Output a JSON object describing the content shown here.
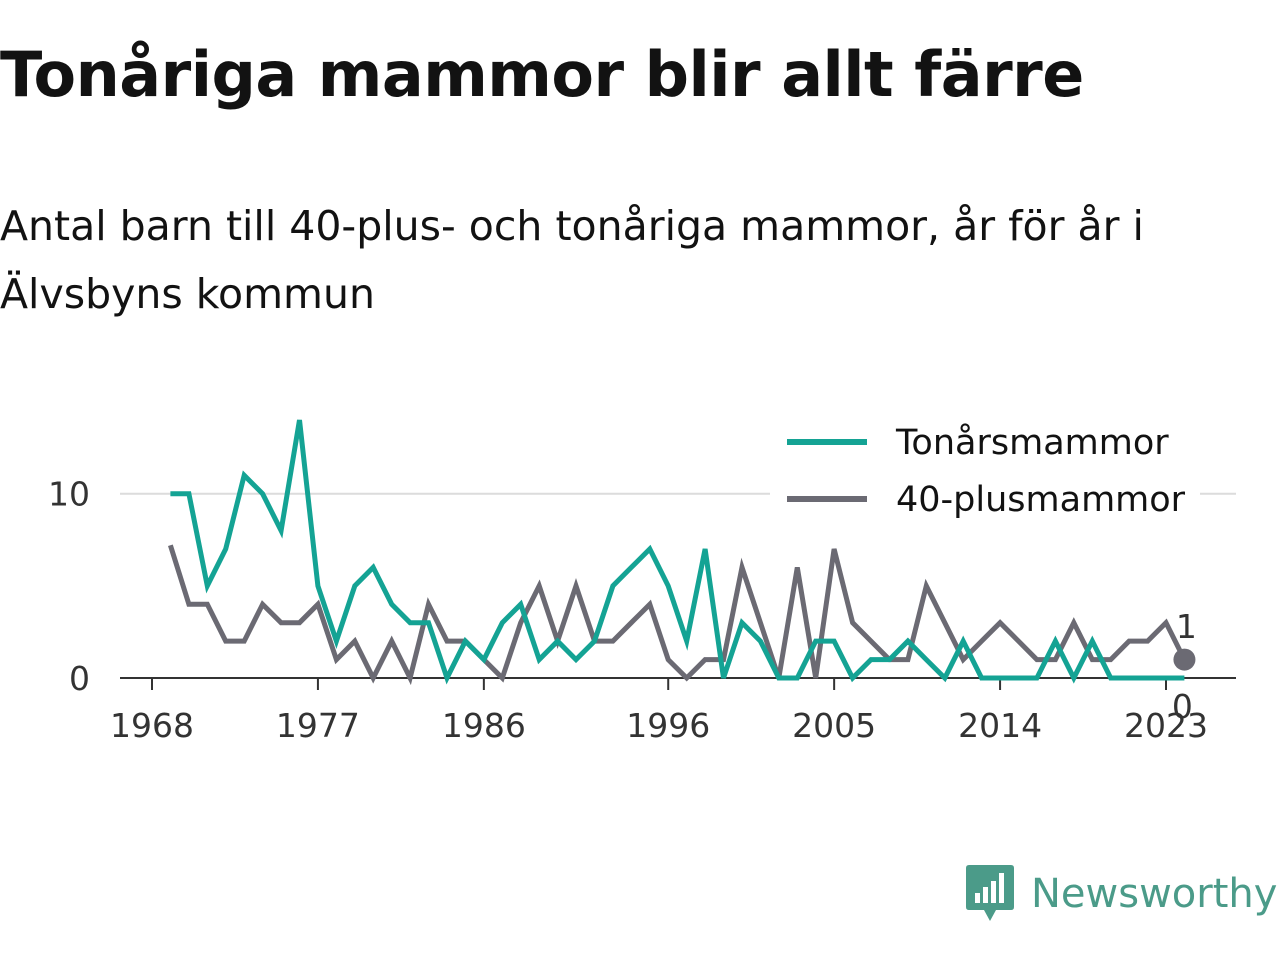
{
  "title": "Tonåriga mammor blir allt färre",
  "subtitle": "Antal barn till 40-plus- och tonåriga mammor, år för år i Älvsbyns kommun",
  "brand": {
    "name": "Newsworthy",
    "icon": "newsworthy-logo-icon",
    "color": "#4b9b89"
  },
  "chart_data": {
    "type": "line",
    "xlim": [
      1968,
      2025
    ],
    "ylim": [
      0,
      14
    ],
    "x_ticks": [
      "1968",
      "1977",
      "1986",
      "1996",
      "2005",
      "2014",
      "2023"
    ],
    "y_ticks": [
      "0",
      "10"
    ],
    "gridlines": [
      10
    ],
    "legend_position": "top-right",
    "end_labels": {
      "40-plusmammor": "1",
      "Tonårsmammor": "0"
    },
    "x": [
      1969,
      1970,
      1971,
      1972,
      1973,
      1974,
      1975,
      1976,
      1977,
      1978,
      1979,
      1980,
      1981,
      1982,
      1983,
      1984,
      1985,
      1986,
      1987,
      1988,
      1989,
      1990,
      1991,
      1992,
      1993,
      1994,
      1995,
      1996,
      1997,
      1998,
      1999,
      2000,
      2001,
      2002,
      2003,
      2004,
      2005,
      2006,
      2007,
      2008,
      2009,
      2010,
      2011,
      2012,
      2013,
      2014,
      2015,
      2016,
      2017,
      2018,
      2019,
      2020,
      2021,
      2022,
      2023,
      2024
    ],
    "series": [
      {
        "name": "Tonårsmammor",
        "color": "#14a394",
        "values": [
          10,
          10,
          5,
          7,
          11,
          10,
          8,
          14,
          5,
          2,
          5,
          6,
          4,
          3,
          3,
          0,
          2,
          1,
          3,
          4,
          1,
          2,
          1,
          2,
          5,
          6,
          7,
          5,
          2,
          7,
          0,
          3,
          2,
          0,
          0,
          2,
          2,
          0,
          1,
          1,
          2,
          1,
          0,
          2,
          0,
          0,
          0,
          0,
          2,
          0,
          2,
          0,
          0,
          0,
          0,
          0
        ]
      },
      {
        "name": "40-plusmammor",
        "color": "#6b6a73",
        "values": [
          7.2,
          4,
          4,
          2,
          2,
          4,
          3,
          3,
          4,
          1,
          2,
          0,
          2,
          0,
          4,
          2,
          2,
          1,
          0,
          3,
          5,
          2,
          5,
          2,
          2,
          3,
          4,
          1,
          0,
          1,
          1,
          6,
          3,
          0,
          6,
          0,
          7,
          3,
          2,
          1,
          1,
          5,
          3,
          1,
          2,
          3,
          2,
          1,
          1,
          3,
          1,
          1,
          2,
          2,
          3,
          1
        ]
      }
    ]
  }
}
